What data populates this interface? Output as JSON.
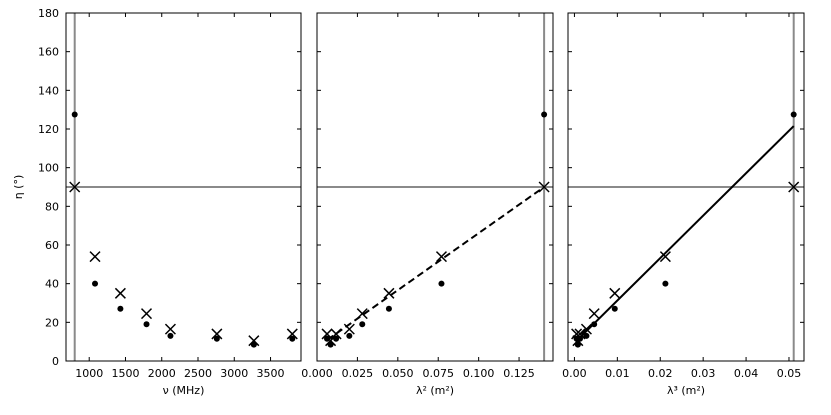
{
  "chart_data": [
    {
      "type": "scatter",
      "ylabel": "η (°)",
      "xlabel": "ν (MHz)",
      "xlim": [
        680,
        3920
      ],
      "ylim": [
        0,
        180
      ],
      "xticks": [
        1000,
        1500,
        2000,
        2500,
        3000,
        3500
      ],
      "xtick_labels": [
        "1000",
        "1500",
        "2000",
        "2500",
        "3000",
        "3500"
      ],
      "yticks": [
        0,
        20,
        40,
        60,
        80,
        100,
        120,
        140,
        160,
        180
      ],
      "ytick_labels": [
        "0",
        "20",
        "40",
        "60",
        "80",
        "100",
        "120",
        "140",
        "160",
        "180"
      ],
      "reference_lines": {
        "vertical": 800,
        "horizontal": 90
      },
      "fit_line": null,
      "series": [
        {
          "marker": "dot",
          "x": [
            800,
            1080,
            1430,
            1790,
            2120,
            2760,
            3270,
            3800
          ],
          "y": [
            127.5,
            40,
            27,
            19,
            13,
            11.5,
            8.5,
            11.5
          ]
        },
        {
          "marker": "cross",
          "x": [
            800,
            1080,
            1430,
            1790,
            2120,
            2760,
            3270,
            3800
          ],
          "y": [
            90,
            54,
            35,
            24.5,
            16.5,
            14,
            10.5,
            14
          ]
        }
      ]
    },
    {
      "type": "scatter",
      "xlabel": "λ² (m²)",
      "xlim": [
        0,
        0.146
      ],
      "ylim": [
        0,
        180
      ],
      "xticks": [
        0,
        0.025,
        0.05,
        0.075,
        0.1,
        0.125
      ],
      "xtick_labels": [
        "0.000",
        "0.025",
        "0.050",
        "0.075",
        "0.100",
        "0.125"
      ],
      "yticks": [
        0,
        20,
        40,
        60,
        80,
        100,
        120,
        140,
        160,
        180
      ],
      "reference_lines": {
        "vertical": 0.1405,
        "horizontal": 90
      },
      "fit_line": {
        "style": "dashed",
        "x": [
          0.0065,
          0.1405
        ],
        "y": [
          11,
          90
        ]
      },
      "series": [
        {
          "marker": "dot",
          "x": [
            0.1405,
            0.077,
            0.0445,
            0.028,
            0.02,
            0.0118,
            0.0084,
            0.0062
          ],
          "y": [
            127.5,
            40,
            27,
            19,
            13,
            11.5,
            8.5,
            11.5
          ]
        },
        {
          "marker": "cross",
          "x": [
            0.1405,
            0.077,
            0.0445,
            0.028,
            0.02,
            0.0118,
            0.0084,
            0.0062
          ],
          "y": [
            90,
            54,
            35,
            24.5,
            16.5,
            14,
            10.5,
            14
          ]
        }
      ]
    },
    {
      "type": "scatter",
      "xlabel": "λ³ (m²)",
      "xlim": [
        -0.0015,
        0.0535
      ],
      "ylim": [
        0,
        180
      ],
      "xticks": [
        0,
        0.01,
        0.02,
        0.03,
        0.04,
        0.05
      ],
      "xtick_labels": [
        "0.00",
        "0.01",
        "0.02",
        "0.03",
        "0.04",
        "0.05"
      ],
      "yticks": [
        0,
        20,
        40,
        60,
        80,
        100,
        120,
        140,
        160,
        180
      ],
      "reference_lines": {
        "vertical": 0.0511,
        "horizontal": 90
      },
      "fit_line": {
        "style": "solid",
        "x": [
          0.0003,
          0.0511
        ],
        "y": [
          10,
          121.5
        ]
      },
      "series": [
        {
          "marker": "dot",
          "x": [
            0.0511,
            0.0212,
            0.0094,
            0.0046,
            0.0028,
            0.0013,
            0.0008,
            0.0005
          ],
          "y": [
            127.5,
            40,
            27,
            19,
            13,
            11.5,
            8.5,
            11.5
          ]
        },
        {
          "marker": "cross",
          "x": [
            0.0511,
            0.0212,
            0.0094,
            0.0046,
            0.0028,
            0.0013,
            0.0008,
            0.0005
          ],
          "y": [
            90,
            54,
            35,
            24.5,
            16.5,
            14,
            10.5,
            14
          ]
        }
      ]
    }
  ]
}
